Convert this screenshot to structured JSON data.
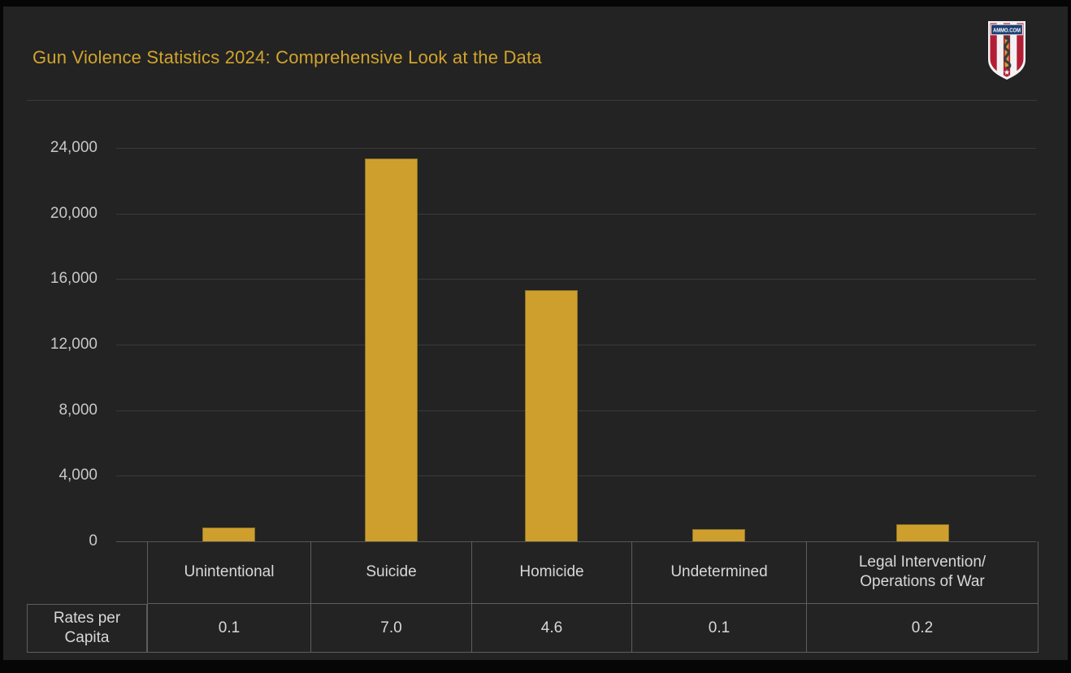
{
  "header": {
    "title": "Gun Violence Statistics 2024: Comprehensive Look at the Data",
    "logo_text": "AMMO.COM"
  },
  "colors": {
    "frame_black": "#060606",
    "background": "#232323",
    "accent_gold": "#d2a42c",
    "bar_fill": "#cf9f2e",
    "gridline": "#3a3a3a",
    "axis_text": "#c8c8c8",
    "table_text": "#d8d8d8",
    "table_border": "#5e5e5e",
    "logo_blue": "#1d3f72",
    "logo_red": "#b31e35",
    "logo_white": "#f2f2f2"
  },
  "chart_data": {
    "type": "bar",
    "title": "Gun Violence Statistics 2024: Comprehensive Look at the Data",
    "categories": [
      "Unintentional",
      "Suicide",
      "Homicide",
      "Undetermined",
      "Legal Intervention/Operations of War"
    ],
    "values": [
      850,
      23350,
      15300,
      750,
      1050
    ],
    "rates_per_capita": [
      0.1,
      7.0,
      4.6,
      0.1,
      0.2
    ],
    "xlabel": "",
    "ylabel": "",
    "ylim": [
      0,
      24000
    ],
    "yticks": [
      0,
      4000,
      8000,
      12000,
      16000,
      20000,
      24000
    ],
    "ytick_labels": [
      "0",
      "4,000",
      "8,000",
      "12,000",
      "16,000",
      "20,000",
      "24,000"
    ],
    "grid": "horizontal",
    "legend": "none",
    "bar_color": "#cf9f2e"
  },
  "table": {
    "row_label": "Rates per\nCapita",
    "columns": [
      "Unintentional",
      "Suicide",
      "Homicide",
      "Undetermined",
      "Legal Intervention/\nOperations of War"
    ],
    "values": [
      "0.1",
      "7.0",
      "4.6",
      "0.1",
      "0.2"
    ]
  }
}
